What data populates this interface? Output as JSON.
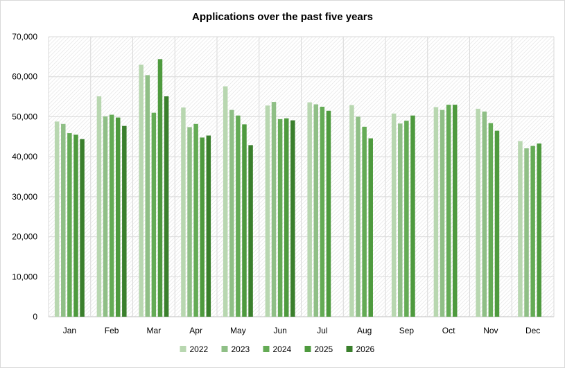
{
  "chart_data": {
    "type": "bar",
    "title": "Applications over the past five years",
    "xlabel": "",
    "ylabel": "",
    "ylim": [
      0,
      70000
    ],
    "y_ticks": [
      "0",
      "10,000",
      "20,000",
      "30,000",
      "40,000",
      "50,000",
      "60,000",
      "70,000"
    ],
    "y_tick_values": [
      0,
      10000,
      20000,
      30000,
      40000,
      50000,
      60000,
      70000
    ],
    "grid": true,
    "legend_position": "bottom",
    "categories": [
      "Jan",
      "Feb",
      "Mar",
      "Apr",
      "May",
      "Jun",
      "Jul",
      "Aug",
      "Sep",
      "Oct",
      "Nov",
      "Dec"
    ],
    "series": [
      {
        "name": "2022",
        "color": "#b8d7b0",
        "values": [
          48800,
          55100,
          63000,
          52300,
          57600,
          52800,
          53600,
          52900,
          50800,
          52400,
          52000,
          43900
        ]
      },
      {
        "name": "2023",
        "color": "#8fbf86",
        "values": [
          48200,
          50100,
          60400,
          47400,
          51700,
          53700,
          53100,
          50000,
          48300,
          51700,
          51300,
          42100
        ]
      },
      {
        "name": "2024",
        "color": "#64ab55",
        "values": [
          45900,
          50500,
          51000,
          48200,
          50300,
          49400,
          52500,
          47500,
          49000,
          53000,
          48400,
          42700
        ]
      },
      {
        "name": "2025",
        "color": "#4e9a3e",
        "values": [
          45500,
          49800,
          64400,
          44800,
          48100,
          49600,
          51500,
          44600,
          50300,
          53000,
          46500,
          43300
        ]
      },
      {
        "name": "2026",
        "color": "#3a7f2c",
        "values": [
          44400,
          47700,
          55100,
          45300,
          42900,
          49100,
          null,
          null,
          null,
          null,
          null,
          null
        ]
      }
    ]
  }
}
